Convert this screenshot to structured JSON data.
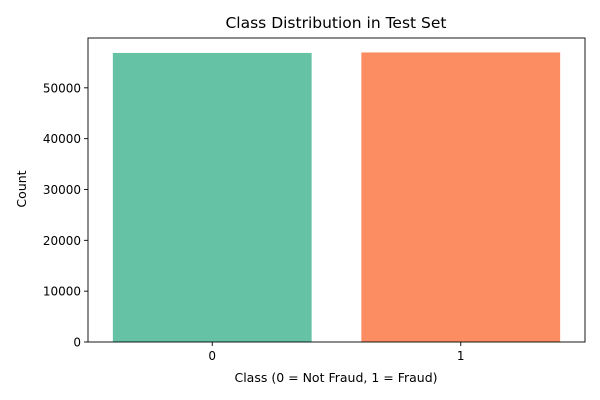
{
  "chart_data": {
    "type": "bar",
    "title": "Class Distribution in Test Set",
    "xlabel": "Class (0 = Not Fraud, 1 = Fraud)",
    "ylabel": "Count",
    "categories": [
      "0",
      "1"
    ],
    "values": [
      56864,
      56962
    ],
    "colors": [
      "#66c2a5",
      "#fc8d62"
    ],
    "ylim": [
      0,
      59800
    ],
    "yticks": [
      0,
      10000,
      20000,
      30000,
      40000,
      50000
    ],
    "grid": false,
    "legend": null
  }
}
